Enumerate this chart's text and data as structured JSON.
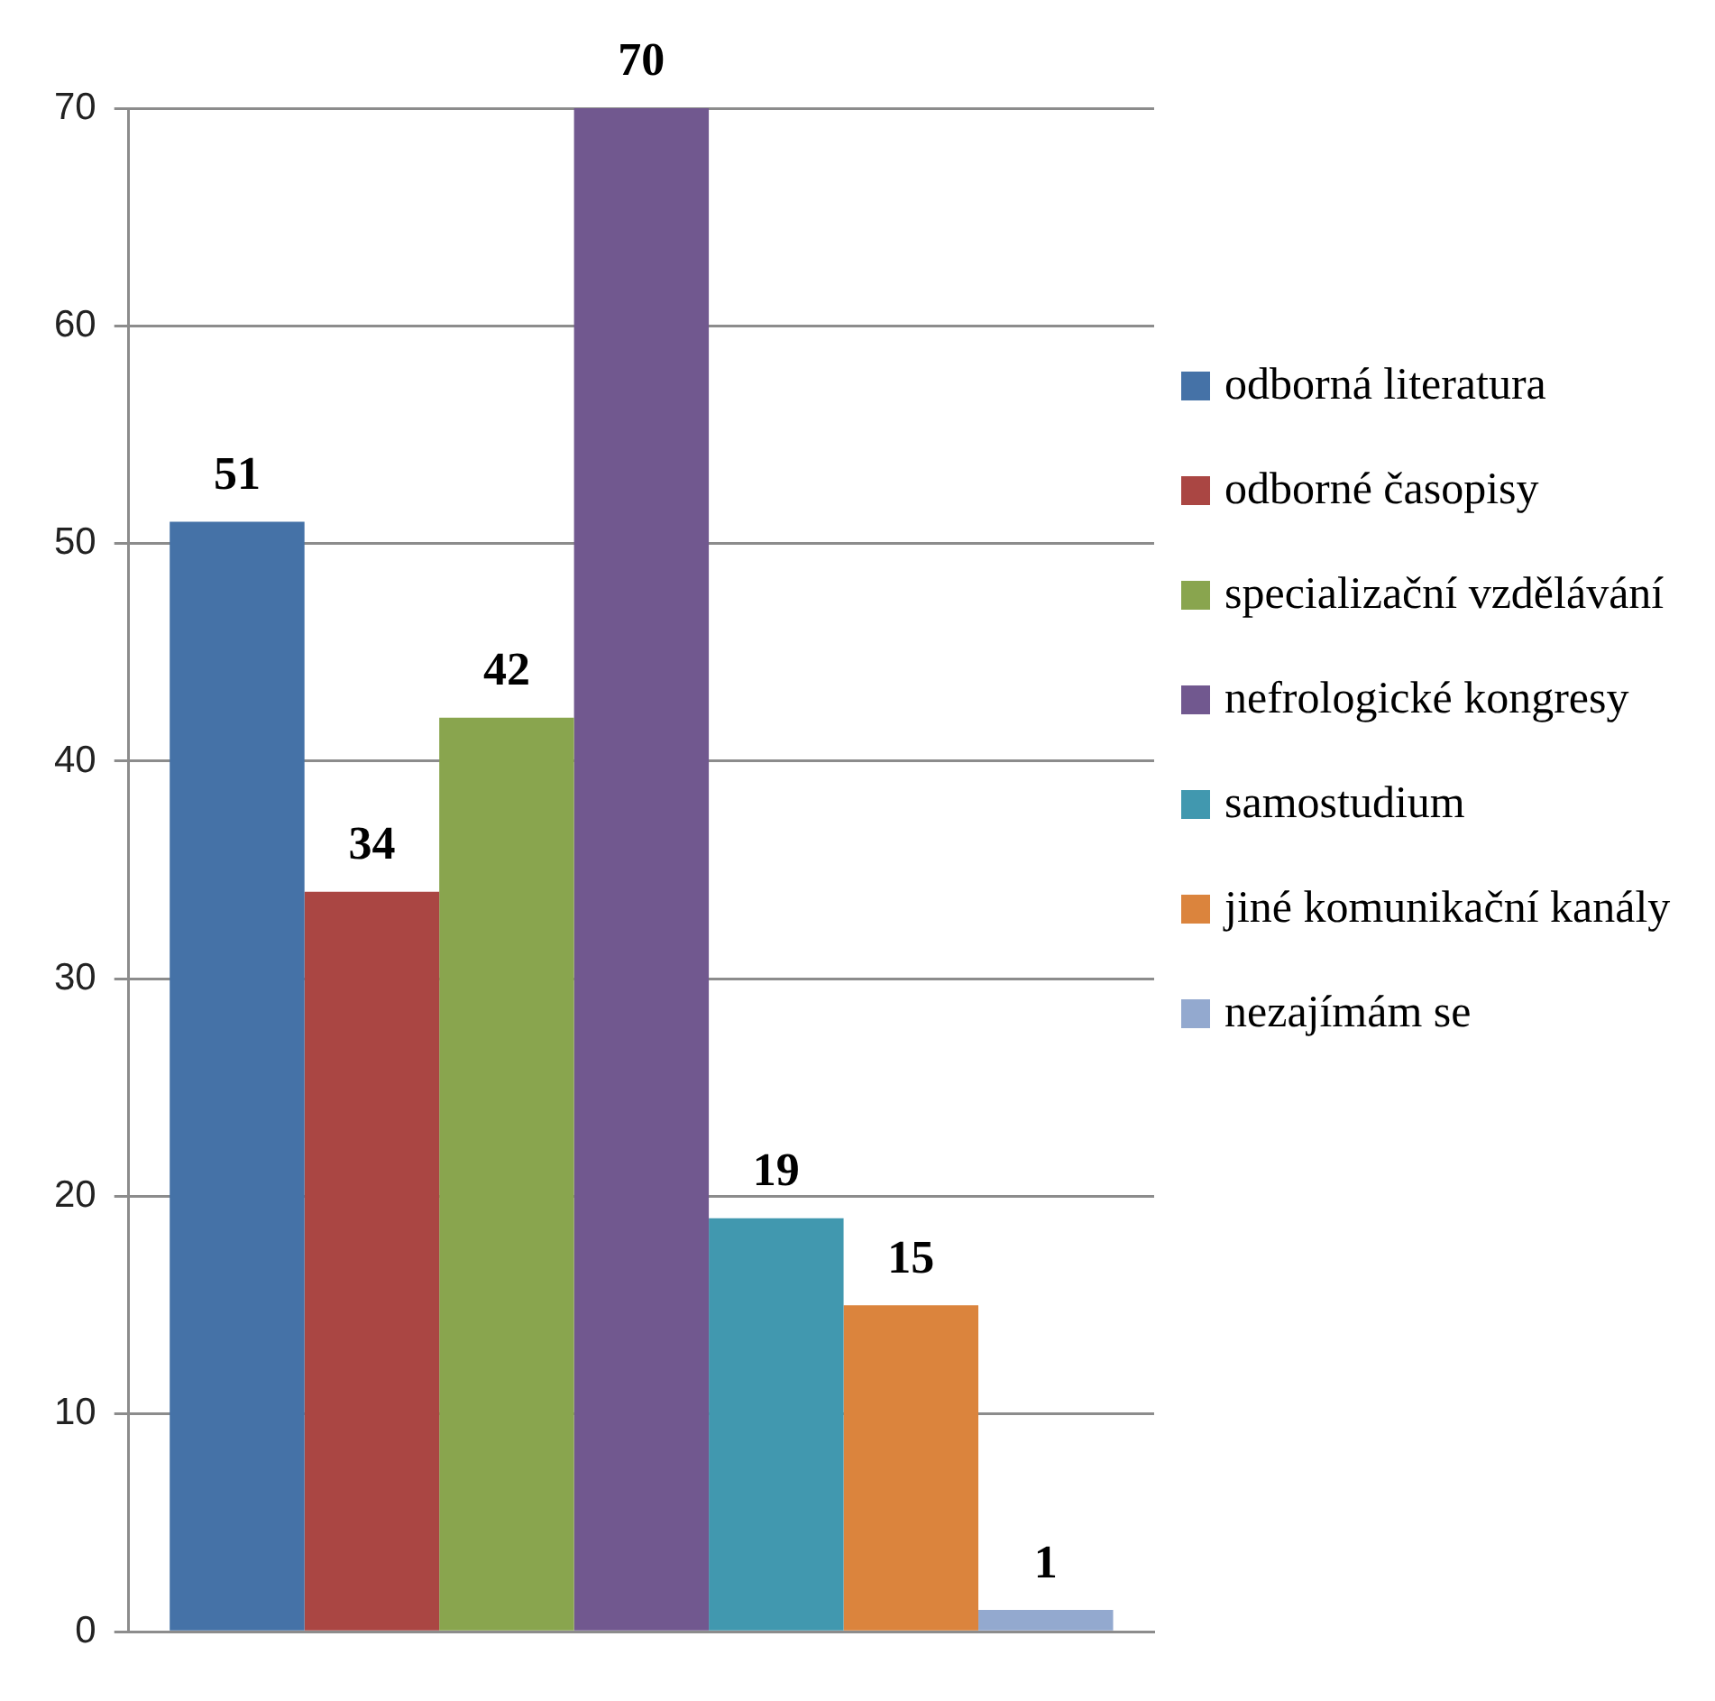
{
  "chart_data": {
    "type": "bar",
    "categories": [
      null
    ],
    "series": [
      {
        "name": "odborná literatura",
        "color": "#4572a7",
        "values": [
          51
        ]
      },
      {
        "name": "odborné časopisy",
        "color": "#aa4643",
        "values": [
          34
        ]
      },
      {
        "name": "specializační vzdělávání",
        "color": "#89a54e",
        "values": [
          42
        ]
      },
      {
        "name": "nefrologické kongresy",
        "color": "#71588f",
        "values": [
          70
        ]
      },
      {
        "name": "samostudium",
        "color": "#4198af",
        "values": [
          19
        ]
      },
      {
        "name": "jiné komunikační kanály",
        "color": "#db843d",
        "values": [
          15
        ]
      },
      {
        "name": "nezajímám se",
        "color": "#93a9cf",
        "values": [
          1
        ]
      }
    ],
    "ylim": [
      0,
      70
    ],
    "yticks": [
      0,
      10,
      20,
      30,
      40,
      50,
      60,
      70
    ],
    "grid": "y",
    "legend": "right",
    "data_labels": true
  }
}
